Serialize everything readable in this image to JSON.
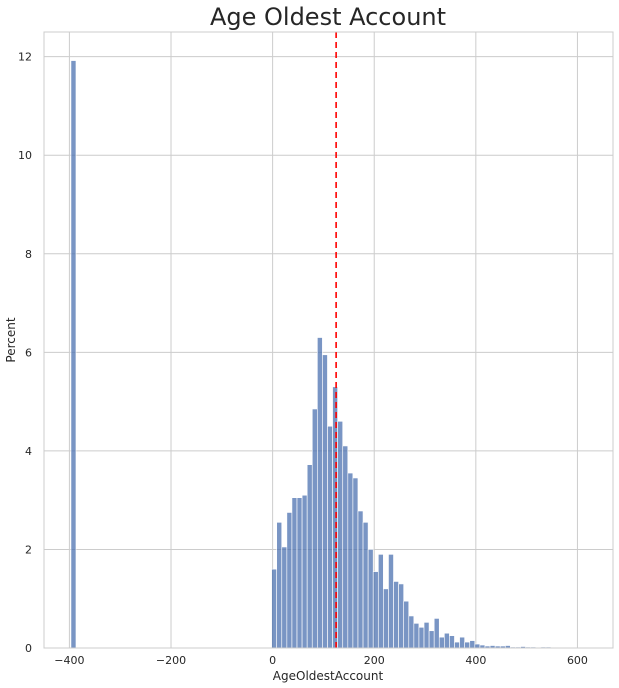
{
  "chart_data": {
    "type": "bar",
    "title": "Age Oldest Account",
    "xlabel": "AgeOldestAccount",
    "ylabel": "Percent",
    "xlim": [
      -450,
      670
    ],
    "ylim": [
      0,
      12.5
    ],
    "xticks": [
      -400,
      -200,
      0,
      200,
      400,
      600
    ],
    "yticks": [
      0,
      2,
      4,
      6,
      8,
      10,
      12
    ],
    "grid": true,
    "bar_color": "#4c72b0",
    "mean_line": {
      "x": 125,
      "color": "#ff0000",
      "style": "dashed"
    },
    "bin_width": 9.9,
    "bins": [
      {
        "x": -392,
        "value": 11.92
      },
      {
        "x": 3,
        "value": 1.6
      },
      {
        "x": 13,
        "value": 2.55
      },
      {
        "x": 23,
        "value": 2.05
      },
      {
        "x": 33,
        "value": 2.75
      },
      {
        "x": 43,
        "value": 3.05
      },
      {
        "x": 53,
        "value": 3.05
      },
      {
        "x": 63,
        "value": 3.1
      },
      {
        "x": 73,
        "value": 3.72
      },
      {
        "x": 83,
        "value": 4.85
      },
      {
        "x": 93,
        "value": 6.3
      },
      {
        "x": 103,
        "value": 5.95
      },
      {
        "x": 113,
        "value": 4.5
      },
      {
        "x": 123,
        "value": 5.3
      },
      {
        "x": 133,
        "value": 4.6
      },
      {
        "x": 143,
        "value": 4.1
      },
      {
        "x": 153,
        "value": 3.55
      },
      {
        "x": 163,
        "value": 3.45
      },
      {
        "x": 173,
        "value": 2.78
      },
      {
        "x": 183,
        "value": 2.55
      },
      {
        "x": 193,
        "value": 2.0
      },
      {
        "x": 203,
        "value": 1.55
      },
      {
        "x": 213,
        "value": 1.9
      },
      {
        "x": 223,
        "value": 1.2
      },
      {
        "x": 233,
        "value": 1.9
      },
      {
        "x": 243,
        "value": 1.35
      },
      {
        "x": 253,
        "value": 1.3
      },
      {
        "x": 263,
        "value": 0.95
      },
      {
        "x": 273,
        "value": 0.65
      },
      {
        "x": 283,
        "value": 0.5
      },
      {
        "x": 293,
        "value": 0.42
      },
      {
        "x": 303,
        "value": 0.52
      },
      {
        "x": 313,
        "value": 0.35
      },
      {
        "x": 323,
        "value": 0.6
      },
      {
        "x": 333,
        "value": 0.22
      },
      {
        "x": 343,
        "value": 0.3
      },
      {
        "x": 353,
        "value": 0.25
      },
      {
        "x": 363,
        "value": 0.12
      },
      {
        "x": 373,
        "value": 0.22
      },
      {
        "x": 383,
        "value": 0.12
      },
      {
        "x": 393,
        "value": 0.15
      },
      {
        "x": 403,
        "value": 0.08
      },
      {
        "x": 413,
        "value": 0.06
      },
      {
        "x": 423,
        "value": 0.04
      },
      {
        "x": 433,
        "value": 0.05
      },
      {
        "x": 443,
        "value": 0.04
      },
      {
        "x": 453,
        "value": 0.04
      },
      {
        "x": 463,
        "value": 0.05
      },
      {
        "x": 473,
        "value": 0.02
      },
      {
        "x": 483,
        "value": 0.02
      },
      {
        "x": 493,
        "value": 0.03
      },
      {
        "x": 503,
        "value": 0.02
      },
      {
        "x": 513,
        "value": 0.02
      },
      {
        "x": 523,
        "value": 0.01
      },
      {
        "x": 533,
        "value": 0.02
      },
      {
        "x": 543,
        "value": 0.02
      },
      {
        "x": 553,
        "value": 0.01
      },
      {
        "x": 563,
        "value": 0.01
      },
      {
        "x": 573,
        "value": 0.01
      },
      {
        "x": 593,
        "value": 0.01
      },
      {
        "x": 613,
        "value": 0.01
      }
    ]
  }
}
